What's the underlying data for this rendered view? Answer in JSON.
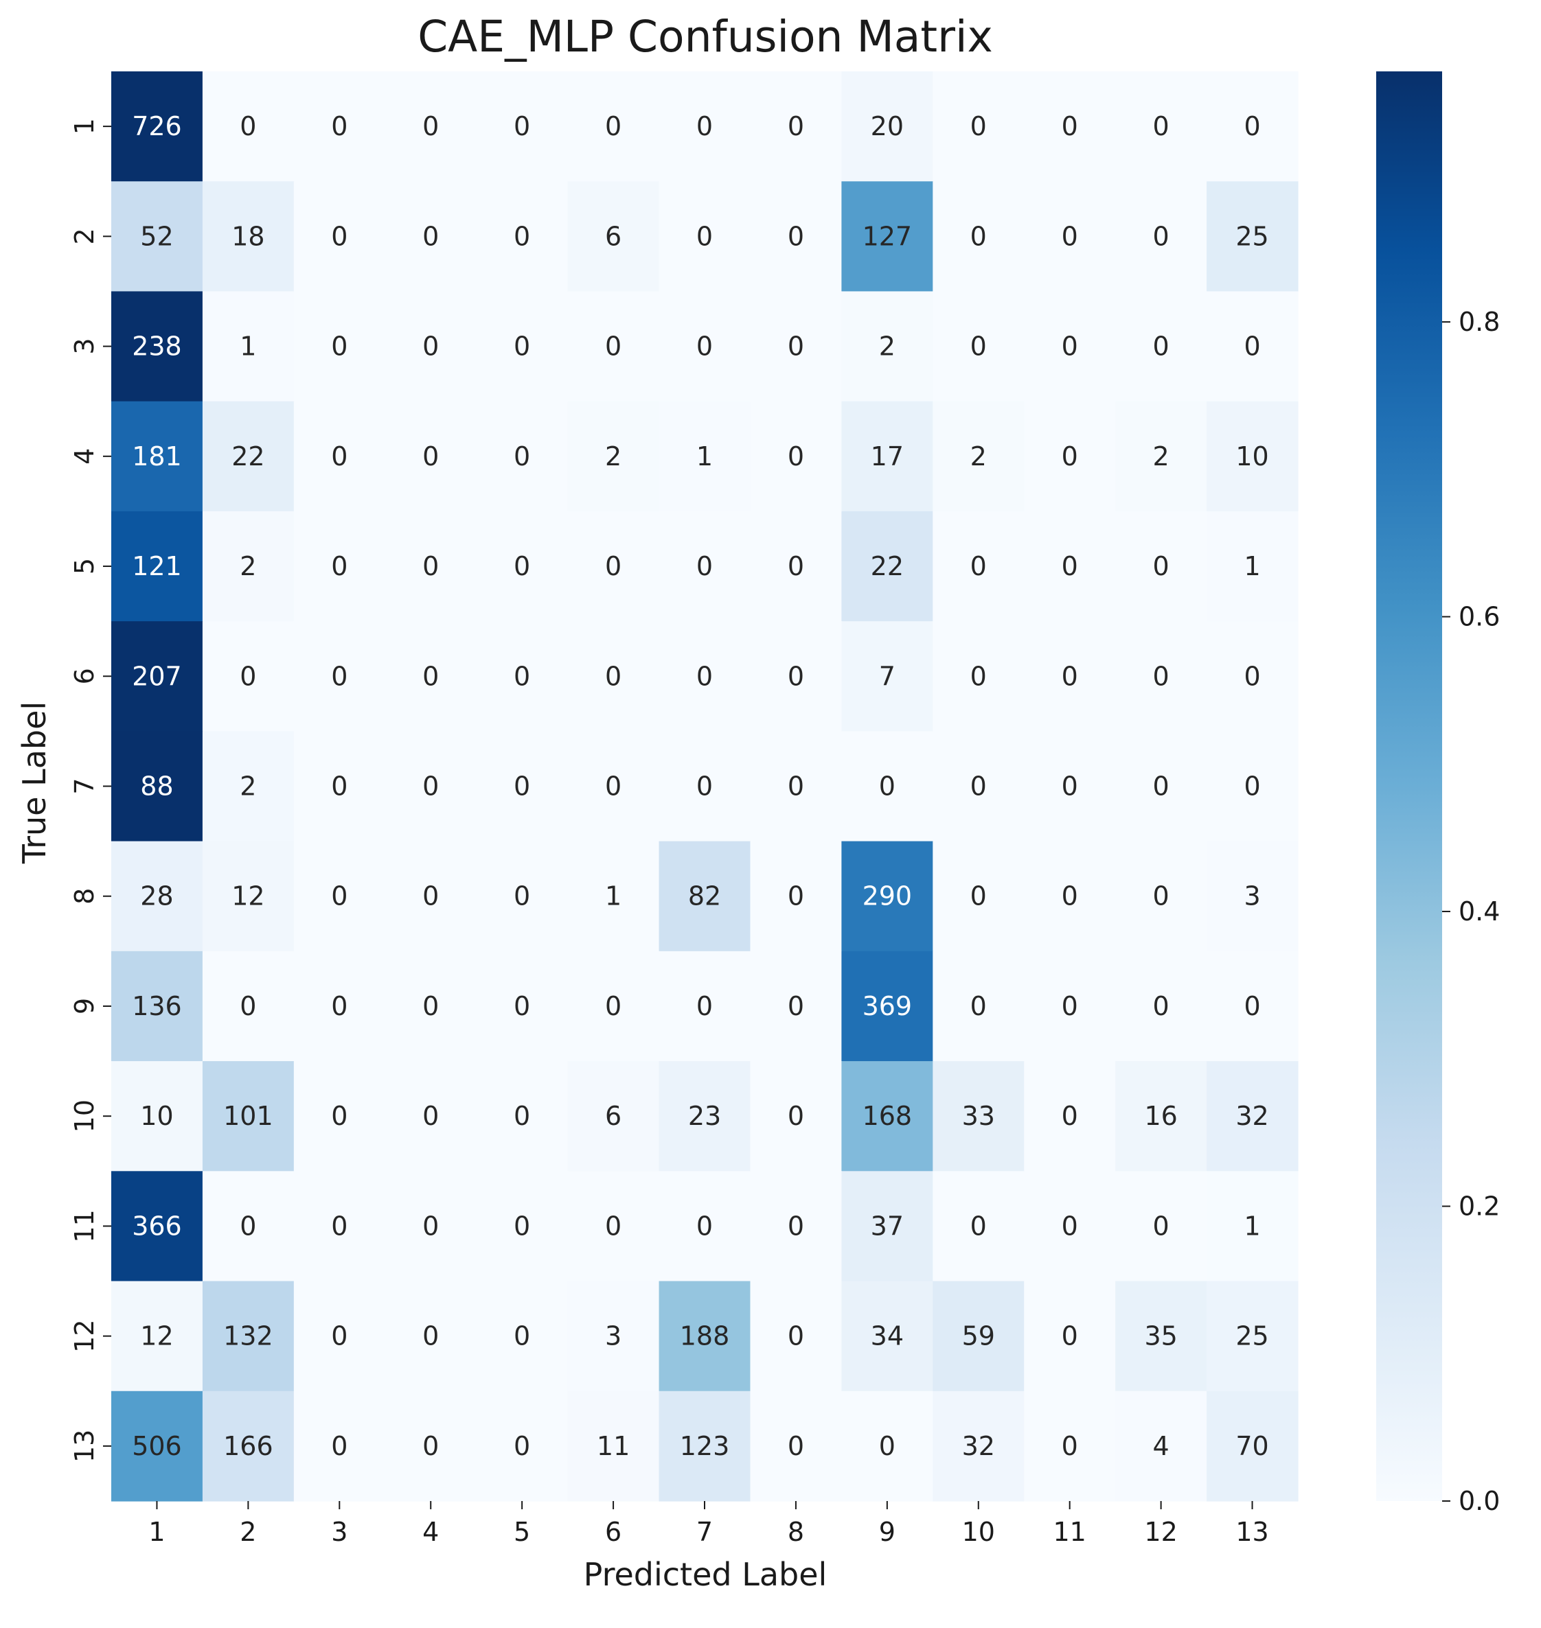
{
  "chart_data": {
    "type": "heatmap",
    "title": "CAE_MLP Confusion Matrix",
    "xlabel": "Predicted Label",
    "ylabel": "True Label",
    "x_categories": [
      "1",
      "2",
      "3",
      "4",
      "5",
      "6",
      "7",
      "8",
      "9",
      "10",
      "11",
      "12",
      "13"
    ],
    "y_categories": [
      "1",
      "2",
      "3",
      "4",
      "5",
      "6",
      "7",
      "8",
      "9",
      "10",
      "11",
      "12",
      "13"
    ],
    "values": [
      [
        726,
        0,
        0,
        0,
        0,
        0,
        0,
        0,
        20,
        0,
        0,
        0,
        0
      ],
      [
        52,
        18,
        0,
        0,
        0,
        6,
        0,
        0,
        127,
        0,
        0,
        0,
        25
      ],
      [
        238,
        1,
        0,
        0,
        0,
        0,
        0,
        0,
        2,
        0,
        0,
        0,
        0
      ],
      [
        181,
        22,
        0,
        0,
        0,
        2,
        1,
        0,
        17,
        2,
        0,
        2,
        10
      ],
      [
        121,
        2,
        0,
        0,
        0,
        0,
        0,
        0,
        22,
        0,
        0,
        0,
        1
      ],
      [
        207,
        0,
        0,
        0,
        0,
        0,
        0,
        0,
        7,
        0,
        0,
        0,
        0
      ],
      [
        88,
        2,
        0,
        0,
        0,
        0,
        0,
        0,
        0,
        0,
        0,
        0,
        0
      ],
      [
        28,
        12,
        0,
        0,
        0,
        1,
        82,
        0,
        290,
        0,
        0,
        0,
        3
      ],
      [
        136,
        0,
        0,
        0,
        0,
        0,
        0,
        0,
        369,
        0,
        0,
        0,
        0
      ],
      [
        10,
        101,
        0,
        0,
        0,
        6,
        23,
        0,
        168,
        33,
        0,
        16,
        32
      ],
      [
        366,
        0,
        0,
        0,
        0,
        0,
        0,
        0,
        37,
        0,
        0,
        0,
        1
      ],
      [
        12,
        132,
        0,
        0,
        0,
        3,
        188,
        0,
        34,
        59,
        0,
        35,
        25
      ],
      [
        506,
        166,
        0,
        0,
        0,
        11,
        123,
        0,
        0,
        32,
        0,
        4,
        70
      ]
    ],
    "color_scale": {
      "name": "Blues",
      "vmin": 0.0,
      "vmax": 0.97,
      "low_color": "#f7fbff",
      "high_color": "#08306b",
      "normalization": "row"
    },
    "colorbar_ticks": [
      "0.0",
      "0.2",
      "0.4",
      "0.6",
      "0.8"
    ],
    "colorbar_tick_values": [
      0.0,
      0.2,
      0.4,
      0.6,
      0.8
    ],
    "text_color_dark": "#262626",
    "text_color_light": "#ffffff",
    "grid": false,
    "legend": "colorbar-right"
  }
}
